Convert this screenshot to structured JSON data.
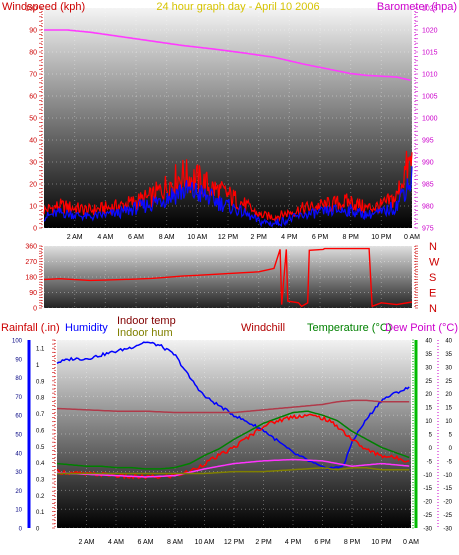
{
  "chart_data": [
    {
      "type": "line",
      "title": "24 hour graph day - April 10 2006",
      "left_axis_label": "Windspeed (kph)",
      "right_axis_label": "Barometer (hpa)",
      "left_range": [
        0,
        100
      ],
      "left_ticks": [
        "0",
        "10",
        "20",
        "30",
        "40",
        "50",
        "60",
        "70",
        "80",
        "90",
        "100"
      ],
      "right_range": [
        975,
        1025
      ],
      "right_ticks": [
        "975",
        "980",
        "985",
        "990",
        "995",
        "1000",
        "1005",
        "1010",
        "1015",
        "1020",
        "1025"
      ],
      "x_ticks": [
        "2 AM",
        "4 AM",
        "6 AM",
        "8 AM",
        "10 AM",
        "12 PM",
        "2 PM",
        "4 PM",
        "6 PM",
        "8 PM",
        "10 PM",
        "0 AM"
      ],
      "x_hours": [
        0,
        24
      ],
      "grid": true,
      "series": [
        {
          "color": "#ff3bff",
          "axis": "right",
          "hours": [
            0,
            1.5,
            3,
            5,
            7,
            9,
            11,
            13,
            15,
            17,
            19,
            20,
            21,
            22,
            23,
            24
          ],
          "values": [
            1020,
            1020,
            1019.5,
            1018.5,
            1017.5,
            1016.5,
            1015.7,
            1014.8,
            1013.8,
            1012.2,
            1010.8,
            1010.1,
            1009.7,
            1009.5,
            1009.3,
            1008.5
          ]
        },
        {
          "color": "#ff0000",
          "axis": "left",
          "hours": [
            0,
            1,
            2,
            3,
            4,
            5,
            6,
            7,
            8,
            9,
            10,
            11,
            12,
            13,
            14,
            15,
            16,
            17,
            18,
            19,
            20,
            21,
            22,
            23,
            23.5,
            24
          ],
          "values": [
            8,
            10,
            9,
            8,
            9,
            10,
            12,
            14,
            19,
            24,
            22,
            18,
            15,
            11,
            6,
            5,
            7,
            9,
            10,
            11,
            12,
            9,
            10,
            14,
            25,
            30
          ]
        },
        {
          "color": "#0b0bff",
          "axis": "left",
          "hours": [
            0,
            1,
            2,
            3,
            4,
            5,
            6,
            7,
            8,
            9,
            10,
            11,
            12,
            13,
            14,
            15,
            16,
            17,
            18,
            19,
            20,
            21,
            22,
            23,
            23.5,
            24
          ],
          "values": [
            5,
            7,
            6,
            5,
            6,
            7,
            9,
            11,
            14,
            17,
            16,
            13,
            10,
            7,
            3,
            2,
            4,
            6,
            7,
            8,
            8,
            6,
            7,
            10,
            18,
            22
          ]
        }
      ]
    },
    {
      "type": "line",
      "left_ticks": [
        "0",
        "90",
        "180",
        "270",
        "360"
      ],
      "left_range": [
        0,
        360
      ],
      "right_labels": [
        "N",
        "W",
        "S",
        "E",
        "N"
      ],
      "grid": true,
      "series": [
        {
          "color": "#ff0000",
          "hours": [
            0,
            1,
            2,
            3,
            4,
            5,
            6,
            7,
            8,
            9,
            10,
            11,
            12,
            13,
            14,
            15,
            15.4,
            15.5,
            15.8,
            15.9,
            16.6,
            16.8,
            17.2,
            17.3,
            18.2,
            18.3,
            21.2,
            21.4,
            22,
            23,
            24
          ],
          "values": [
            165,
            170,
            165,
            160,
            162,
            165,
            168,
            172,
            178,
            185,
            190,
            195,
            200,
            205,
            210,
            230,
            340,
            20,
            340,
            40,
            30,
            10,
            30,
            335,
            340,
            345,
            345,
            10,
            30,
            20,
            35
          ]
        }
      ]
    },
    {
      "type": "line",
      "labels": {
        "rainfall": "Rainfall (.in)",
        "humidity": "Humidity",
        "indoor_temp": "Indoor temp",
        "indoor_hum": "Indoor hum",
        "windchill": "Windchill",
        "temperature": "Temperature (°C)",
        "dew_point": "Dew Point (°C)"
      },
      "axis_humidity_ticks": [
        "0",
        "10",
        "20",
        "30",
        "40",
        "50",
        "60",
        "70",
        "80",
        "90",
        "100"
      ],
      "axis_humidity_range": [
        0,
        100
      ],
      "axis_rain_ticks": [
        "0",
        "0.1",
        "0.2",
        "0.3",
        "0.4",
        "0.5",
        "0.6",
        "0.7",
        "0.8",
        "0.9",
        "1",
        "1.1"
      ],
      "axis_rain_range": [
        0,
        1.15
      ],
      "axis_temp_ticks": [
        "-30",
        "-25",
        "-20",
        "-15",
        "-10",
        "-5",
        "0",
        "5",
        "10",
        "15",
        "20",
        "25",
        "30",
        "35",
        "40"
      ],
      "axis_temp_range": [
        -30,
        40
      ],
      "x_ticks": [
        "2 AM",
        "4 AM",
        "6 AM",
        "8 AM",
        "10 AM",
        "12 PM",
        "2 PM",
        "4 PM",
        "6 PM",
        "8 PM",
        "10 PM",
        "0 AM"
      ],
      "colors": {
        "rainfall": "#ff0000",
        "humidity": "#0000ff",
        "indoor_temp": "#800000",
        "indoor_hum": "#808000",
        "windchill": "#b00000",
        "temperature": "#008000",
        "dew_point": "#cc00cc"
      },
      "series": [
        {
          "name": "Humidity",
          "color": "#0000ff",
          "axis": "humidity",
          "hours": [
            0,
            1,
            2,
            3,
            4,
            5,
            6,
            6.5,
            7,
            8,
            9,
            10,
            11,
            12,
            13,
            14,
            15,
            16,
            17,
            18,
            19,
            19.5,
            20,
            21,
            22,
            23,
            24
          ],
          "values": [
            88,
            90,
            90,
            92,
            94,
            96,
            99,
            98,
            97,
            92,
            80,
            70,
            65,
            60,
            56,
            52,
            46,
            40,
            36,
            32,
            32,
            34,
            46,
            58,
            68,
            72,
            75
          ]
        },
        {
          "name": "Indoor temp",
          "color": "#b03a4a",
          "axis": "temp",
          "hours": [
            0,
            2,
            4,
            6,
            8,
            10,
            12,
            14,
            16,
            18,
            19,
            20,
            21,
            22,
            23,
            24
          ],
          "values": [
            14.5,
            14,
            13.5,
            13.5,
            13,
            13,
            13,
            14,
            15,
            16,
            17,
            17.5,
            17.5,
            17,
            17,
            17
          ]
        },
        {
          "name": "Temperature",
          "color": "#008000",
          "axis": "temp",
          "hours": [
            0,
            1,
            2,
            3,
            4,
            5,
            6,
            7,
            8,
            9,
            10,
            11,
            12,
            13,
            14,
            15,
            16,
            17,
            18,
            19,
            20,
            21,
            22,
            23,
            24
          ],
          "values": [
            -6,
            -6.5,
            -7,
            -7,
            -7.5,
            -7.5,
            -8,
            -8,
            -7.5,
            -6,
            -3,
            -0.5,
            3,
            6,
            9,
            11,
            13,
            13.5,
            12,
            10,
            6,
            3,
            0,
            -2,
            -4
          ]
        },
        {
          "name": "Windchill",
          "color": "#ff0000",
          "axis": "temp",
          "hours": [
            0,
            1,
            2,
            3,
            4,
            5,
            6,
            7,
            8,
            9,
            10,
            11,
            12,
            13,
            14,
            15,
            16,
            17,
            18,
            19,
            20,
            21,
            22,
            23,
            24
          ],
          "values": [
            -9,
            -9.5,
            -10,
            -10,
            -10.5,
            -11,
            -11,
            -11,
            -10.5,
            -9,
            -6,
            -3,
            0,
            4,
            8,
            10,
            11.5,
            12,
            11,
            8,
            3,
            -1,
            -3,
            -4,
            -5
          ]
        },
        {
          "name": "Dew Point",
          "color": "#ff33ff",
          "axis": "temp",
          "hours": [
            0,
            2,
            4,
            6,
            8,
            10,
            12,
            14,
            16,
            18,
            19,
            20,
            21,
            22,
            23,
            24
          ],
          "values": [
            -9.5,
            -10,
            -10.5,
            -11,
            -10.5,
            -8,
            -6,
            -5,
            -4.5,
            -5,
            -6,
            -7,
            -6.5,
            -6,
            -6.5,
            -7
          ]
        },
        {
          "name": "Indoor hum",
          "color": "#808000",
          "axis": "humidity",
          "hours": [
            0,
            4,
            8,
            10,
            12,
            14,
            16,
            18,
            19,
            20,
            21,
            22,
            24
          ],
          "values": [
            29,
            29,
            29,
            29,
            30,
            30,
            31,
            32,
            31,
            32,
            32,
            31,
            31
          ]
        }
      ]
    }
  ]
}
